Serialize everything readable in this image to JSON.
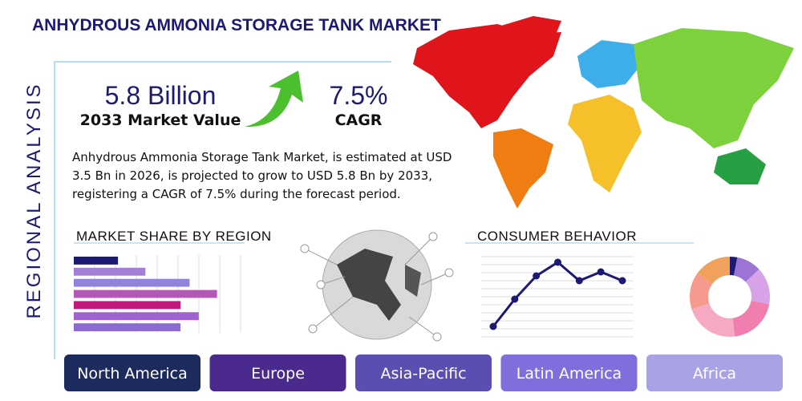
{
  "header": {
    "title": "ANHYDROUS AMMONIA STORAGE TANK MARKET",
    "side_label": "REGIONAL ANALYSIS"
  },
  "stats": {
    "market_value": "5.8 Billion",
    "market_value_label": "2033 Market Value",
    "cagr": "7.5%",
    "cagr_label": "CAGR"
  },
  "description": [
    "Anhydrous Ammonia Storage Tank Market, is estimated at USD",
    "3.5 Bn in 2026, is projected to grow to USD 5.8 Bn by 2033,",
    "registering a CAGR of 7.5% during the forecast period."
  ],
  "chart_data": [
    {
      "type": "hbar",
      "title": "MARKET SHARE BY REGION",
      "categories": [
        null,
        null,
        null,
        null,
        null,
        null,
        null
      ],
      "values": [
        29,
        47,
        76,
        94,
        70,
        82,
        70
      ],
      "colors": [
        "#1c1a72",
        "#a57fd6",
        "#8f83db",
        "#b458b8",
        "#c2187c",
        "#a062cf",
        "#8c6ad2"
      ],
      "xlim": [
        0,
        100
      ],
      "grid": true
    },
    {
      "type": "line",
      "title": "CONSUMER BEHAVIOR",
      "categories": [
        null,
        null,
        null,
        null,
        null,
        null,
        null
      ],
      "values": [
        13,
        47,
        76,
        93,
        70,
        81,
        70
      ],
      "color": "#1c1a72",
      "ylim": [
        0,
        100
      ],
      "grid": true
    },
    {
      "type": "donut",
      "values": [
        3,
        10,
        15,
        20,
        22,
        15,
        15
      ],
      "colors": [
        "#1c1a72",
        "#9b74d6",
        "#d7a3e6",
        "#f07fb0",
        "#f7a9c4",
        "#f59a8c",
        "#f2a15c"
      ]
    }
  ],
  "regions": [
    "North America",
    "Europe",
    "Asia-Pacific",
    "Latin America",
    "Africa"
  ]
}
